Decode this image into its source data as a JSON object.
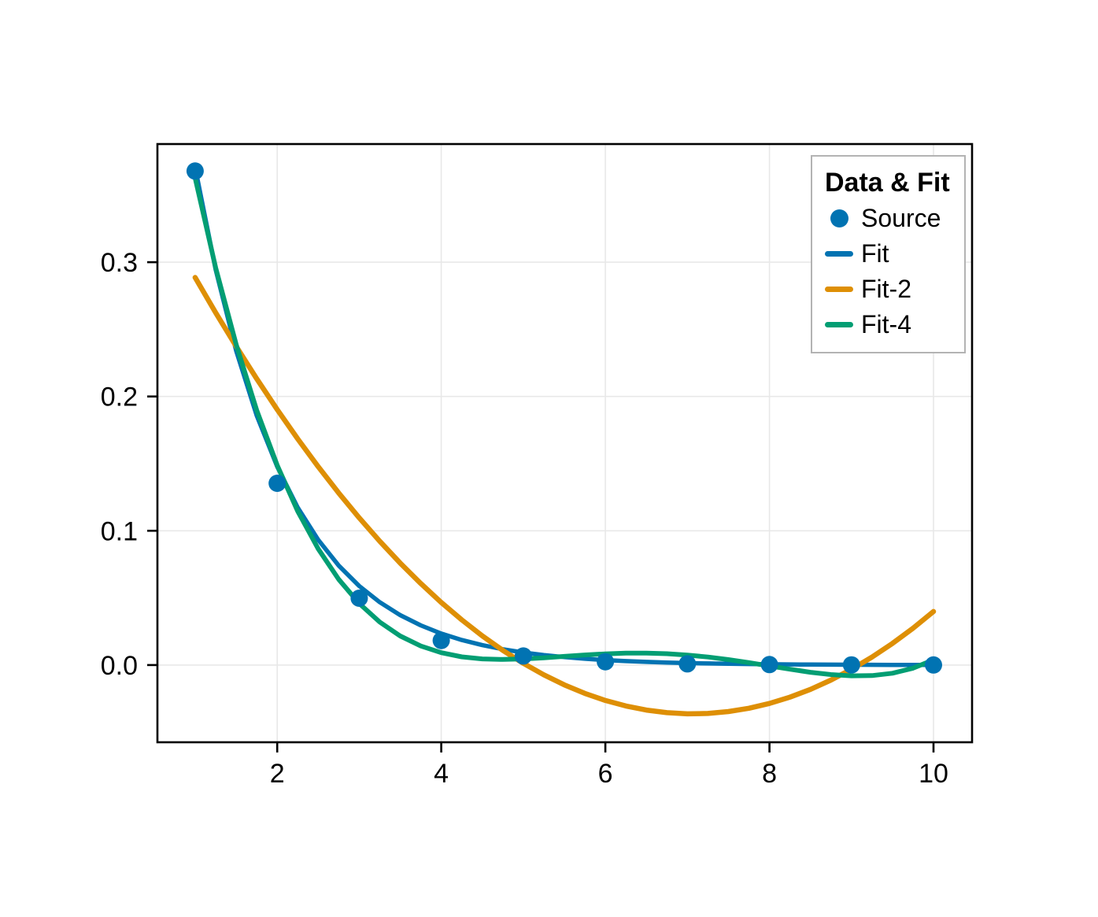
{
  "chart_data": {
    "type": "line",
    "title": "",
    "xlabel": "",
    "ylabel": "",
    "axes": {
      "xlim": [
        0.54,
        10.47
      ],
      "ylim": [
        -0.0575,
        0.388
      ],
      "xticks": {
        "values": [
          2,
          4,
          6,
          8,
          10
        ],
        "labels": [
          "2",
          "4",
          "6",
          "8",
          "10"
        ]
      },
      "yticks": {
        "values": [
          0.0,
          0.1,
          0.2,
          0.3
        ],
        "labels": [
          "0.0",
          "0.1",
          "0.2",
          "0.3"
        ]
      },
      "grid": true
    },
    "style": {
      "background": "#ffffff",
      "grid_color": "#e8e8e8",
      "frame_color": "#000000",
      "tick_color": "#000000",
      "tick_label_color": "#000000"
    },
    "series": [
      {
        "name": "Fit",
        "kind": "line",
        "color": "#0173B2",
        "width": 5.5,
        "x": [
          1,
          1.25,
          1.5,
          1.75,
          2,
          2.25,
          2.5,
          2.75,
          3,
          3.25,
          3.5,
          3.75,
          4,
          4.25,
          4.5,
          4.75,
          5,
          5.25,
          5.5,
          5.75,
          6,
          6.25,
          6.5,
          6.75,
          7,
          7.25,
          7.5,
          7.75,
          8,
          8.25,
          8.5,
          8.75,
          9,
          9.25,
          9.5,
          9.75,
          10
        ],
        "y": [
          0.37062,
          0.29447,
          0.23397,
          0.1859,
          0.1477,
          0.11736,
          0.09324,
          0.07408,
          0.05886,
          0.04677,
          0.03716,
          0.02953,
          0.02346,
          0.01864,
          0.01481,
          0.01176,
          0.00935,
          0.00742,
          0.0059,
          0.00469,
          0.00372,
          0.00296,
          0.00235,
          0.00186,
          0.00148,
          0.00118,
          0.00093,
          0.00074,
          0.00059,
          0.00047,
          0.00037,
          0.0003,
          0.00023,
          0.00019,
          0.00015,
          0.00012,
          9e-05
        ]
      },
      {
        "name": "Fit-2",
        "kind": "line",
        "color": "#DE8F05",
        "width": 6.5,
        "x": [
          1,
          1.25,
          1.5,
          1.75,
          2,
          2.25,
          2.5,
          2.75,
          3,
          3.25,
          3.5,
          3.75,
          4,
          4.25,
          4.5,
          4.75,
          5,
          5.25,
          5.5,
          5.75,
          6,
          6.25,
          6.5,
          6.75,
          7,
          7.25,
          7.5,
          7.75,
          8,
          8.25,
          8.5,
          8.75,
          9,
          9.25,
          9.5,
          9.75,
          10
        ],
        "y": [
          0.28866,
          0.26241,
          0.23727,
          0.21323,
          0.1903,
          0.16847,
          0.14775,
          0.12813,
          0.10962,
          0.09221,
          0.07591,
          0.06071,
          0.04662,
          0.03363,
          0.02174,
          0.01097,
          0.00129,
          -0.00727,
          -0.01474,
          -0.02109,
          -0.02635,
          -0.03049,
          -0.03354,
          -0.03548,
          -0.03631,
          -0.03604,
          -0.03466,
          -0.03218,
          -0.02859,
          -0.0239,
          -0.0181,
          -0.0112,
          -0.00319,
          0.00592,
          0.01614,
          0.02746,
          0.03989
        ]
      },
      {
        "name": "Fit-4",
        "kind": "line",
        "color": "#029E73",
        "width": 6,
        "x": [
          1,
          1.25,
          1.5,
          1.75,
          2,
          2.25,
          2.5,
          2.75,
          3,
          3.25,
          3.5,
          3.75,
          4,
          4.25,
          4.5,
          4.75,
          5,
          5.25,
          5.5,
          5.75,
          6,
          6.25,
          6.5,
          6.75,
          7,
          7.25,
          7.5,
          7.75,
          8,
          8.25,
          8.5,
          8.75,
          9,
          9.25,
          9.5,
          9.75,
          10
        ],
        "y": [
          0.36282,
          0.29592,
          0.23863,
          0.18986,
          0.14878,
          0.11458,
          0.0865,
          0.06383,
          0.04587,
          0.03201,
          0.02163,
          0.0142,
          0.00919,
          0.00613,
          0.00459,
          0.00418,
          0.00455,
          0.0054,
          0.00646,
          0.0075,
          0.00834,
          0.00883,
          0.00888,
          0.00843,
          0.00745,
          0.00596,
          0.00404,
          0.00178,
          -0.00067,
          -0.00313,
          -0.00536,
          -0.0071,
          -0.00804,
          -0.00783,
          -0.00607,
          -0.00233,
          0.00387
        ]
      },
      {
        "name": "Source",
        "kind": "scatter",
        "color": "#0173B2",
        "marker_size": 11,
        "x": [
          1,
          2,
          3,
          4,
          5,
          6,
          7,
          8,
          9,
          10
        ],
        "y": [
          0.36788,
          0.13534,
          0.04979,
          0.01832,
          0.00674,
          0.00248,
          0.00091,
          0.00034,
          0.00012,
          5e-05
        ]
      }
    ],
    "legend": {
      "title": "Data & Fit",
      "position": "top-right",
      "entries": [
        {
          "label": "Source",
          "kind": "scatter",
          "color": "#0173B2"
        },
        {
          "label": "Fit",
          "kind": "line",
          "color": "#0173B2"
        },
        {
          "label": "Fit-2",
          "kind": "line",
          "color": "#DE8F05"
        },
        {
          "label": "Fit-4",
          "kind": "line",
          "color": "#029E73"
        }
      ]
    }
  }
}
